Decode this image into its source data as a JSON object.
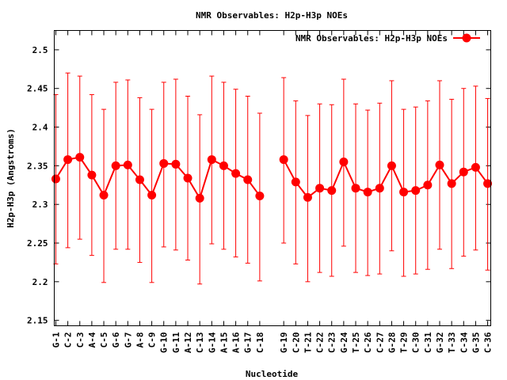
{
  "chart_data": {
    "type": "line",
    "title": "NMR Observables: H2p-H3p NOEs",
    "xlabel": "Nucleotide",
    "ylabel": "H2p-H3p (Angstroms)",
    "ylim": [
      2.143,
      2.525
    ],
    "xlim": [
      0.87,
      37.26
    ],
    "grid": false,
    "legend": {
      "position": "top-right",
      "entries": [
        "NMR Observables: H2p-H3p NOEs"
      ]
    },
    "color": "#ff0000",
    "yticks": [
      "2.15",
      "2.2",
      "2.25",
      "2.3",
      "2.35",
      "2.4",
      "2.45",
      "2.5"
    ],
    "series": [
      {
        "name": "NMR Observables: H2p-H3p NOEs",
        "points": [
          {
            "label": "G-1",
            "x": 1,
            "y": 2.333,
            "lo": 2.223,
            "hi": 2.442
          },
          {
            "label": "C-2",
            "x": 2,
            "y": 2.358,
            "lo": 2.244,
            "hi": 2.47
          },
          {
            "label": "C-3",
            "x": 3,
            "y": 2.361,
            "lo": 2.255,
            "hi": 2.466
          },
          {
            "label": "A-4",
            "x": 4,
            "y": 2.338,
            "lo": 2.234,
            "hi": 2.442
          },
          {
            "label": "C-5",
            "x": 5,
            "y": 2.312,
            "lo": 2.199,
            "hi": 2.423
          },
          {
            "label": "G-6",
            "x": 6,
            "y": 2.35,
            "lo": 2.242,
            "hi": 2.458
          },
          {
            "label": "G-7",
            "x": 7,
            "y": 2.351,
            "lo": 2.242,
            "hi": 2.461
          },
          {
            "label": "A-8",
            "x": 8,
            "y": 2.332,
            "lo": 2.225,
            "hi": 2.438
          },
          {
            "label": "C-9",
            "x": 9,
            "y": 2.312,
            "lo": 2.199,
            "hi": 2.423
          },
          {
            "label": "G-10",
            "x": 10,
            "y": 2.353,
            "lo": 2.245,
            "hi": 2.458
          },
          {
            "label": "G-11",
            "x": 11,
            "y": 2.352,
            "lo": 2.241,
            "hi": 2.462
          },
          {
            "label": "A-12",
            "x": 12,
            "y": 2.334,
            "lo": 2.228,
            "hi": 2.44
          },
          {
            "label": "C-13",
            "x": 13,
            "y": 2.308,
            "lo": 2.197,
            "hi": 2.416
          },
          {
            "label": "G-14",
            "x": 14,
            "y": 2.358,
            "lo": 2.249,
            "hi": 2.466
          },
          {
            "label": "A-15",
            "x": 15,
            "y": 2.35,
            "lo": 2.242,
            "hi": 2.458
          },
          {
            "label": "A-16",
            "x": 16,
            "y": 2.34,
            "lo": 2.232,
            "hi": 2.449
          },
          {
            "label": "G-17",
            "x": 17,
            "y": 2.332,
            "lo": 2.224,
            "hi": 2.44
          },
          {
            "label": "C-18",
            "x": 18,
            "y": 2.311,
            "lo": 2.201,
            "hi": 2.418
          },
          {
            "label": "G-19",
            "x": 20,
            "y": 2.358,
            "lo": 2.25,
            "hi": 2.464
          },
          {
            "label": "C-20",
            "x": 21,
            "y": 2.329,
            "lo": 2.223,
            "hi": 2.434
          },
          {
            "label": "T-21",
            "x": 22,
            "y": 2.309,
            "lo": 2.2,
            "hi": 2.415
          },
          {
            "label": "C-22",
            "x": 23,
            "y": 2.321,
            "lo": 2.212,
            "hi": 2.43
          },
          {
            "label": "C-23",
            "x": 24,
            "y": 2.318,
            "lo": 2.207,
            "hi": 2.429
          },
          {
            "label": "G-24",
            "x": 25,
            "y": 2.355,
            "lo": 2.246,
            "hi": 2.462
          },
          {
            "label": "T-25",
            "x": 26,
            "y": 2.321,
            "lo": 2.212,
            "hi": 2.43
          },
          {
            "label": "C-26",
            "x": 27,
            "y": 2.316,
            "lo": 2.208,
            "hi": 2.422
          },
          {
            "label": "C-27",
            "x": 28,
            "y": 2.321,
            "lo": 2.21,
            "hi": 2.431
          },
          {
            "label": "G-28",
            "x": 29,
            "y": 2.35,
            "lo": 2.24,
            "hi": 2.46
          },
          {
            "label": "T-29",
            "x": 30,
            "y": 2.316,
            "lo": 2.207,
            "hi": 2.423
          },
          {
            "label": "C-30",
            "x": 31,
            "y": 2.318,
            "lo": 2.21,
            "hi": 2.426
          },
          {
            "label": "C-31",
            "x": 32,
            "y": 2.325,
            "lo": 2.216,
            "hi": 2.434
          },
          {
            "label": "G-32",
            "x": 33,
            "y": 2.351,
            "lo": 2.242,
            "hi": 2.46
          },
          {
            "label": "T-33",
            "x": 34,
            "y": 2.327,
            "lo": 2.217,
            "hi": 2.436
          },
          {
            "label": "C-34",
            "x": 35,
            "y": 2.342,
            "lo": 2.233,
            "hi": 2.45
          },
          {
            "label": "G-35",
            "x": 36,
            "y": 2.348,
            "lo": 2.241,
            "hi": 2.453
          },
          {
            "label": "C-36",
            "x": 37,
            "y": 2.327,
            "lo": 2.215,
            "hi": 2.437
          }
        ]
      }
    ]
  }
}
